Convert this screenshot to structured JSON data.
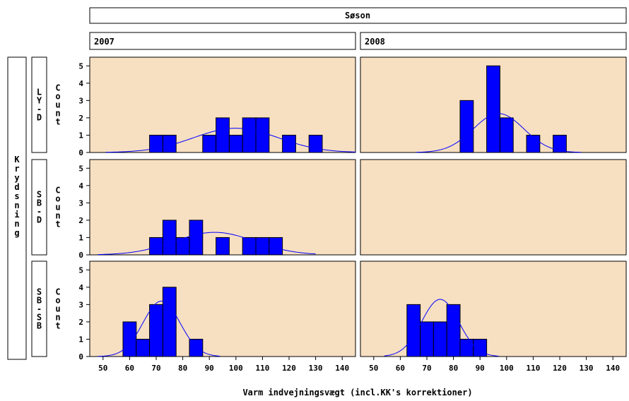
{
  "chart_data": {
    "type": "bar",
    "column_header": "Søson",
    "row_header": "Krydsning",
    "columns": [
      "2007",
      "2008"
    ],
    "rows": [
      "LY-D",
      "SB-D",
      "SB-SB"
    ],
    "ylabel": "Count",
    "xlabel": "Varm indvejningsvægt (incl.KK's korrektioner)",
    "xlim": [
      45,
      145
    ],
    "ylim": [
      0,
      5.5
    ],
    "xticks": [
      50,
      60,
      70,
      80,
      90,
      100,
      110,
      120,
      130,
      140
    ],
    "yticks": [
      0,
      1,
      2,
      3,
      4,
      5
    ],
    "bin_width": 5,
    "colors": {
      "panel_bg": "#f7dfc2",
      "bar": "#0000ff",
      "curve": "#0000ff"
    },
    "panels": [
      {
        "row": "LY-D",
        "column": "2007",
        "bars": [
          {
            "x": 70,
            "count": 1
          },
          {
            "x": 75,
            "count": 1
          },
          {
            "x": 90,
            "count": 1
          },
          {
            "x": 95,
            "count": 2
          },
          {
            "x": 100,
            "count": 1
          },
          {
            "x": 105,
            "count": 2
          },
          {
            "x": 110,
            "count": 2
          },
          {
            "x": 120,
            "count": 1
          },
          {
            "x": 130,
            "count": 1
          }
        ],
        "normal_curve": {
          "mean": 100,
          "sd": 16,
          "peak": 1.4,
          "xmin": 51,
          "xmax": 146
        }
      },
      {
        "row": "LY-D",
        "column": "2008",
        "bars": [
          {
            "x": 85,
            "count": 3
          },
          {
            "x": 95,
            "count": 5
          },
          {
            "x": 100,
            "count": 2
          },
          {
            "x": 110,
            "count": 1
          },
          {
            "x": 120,
            "count": 1
          }
        ],
        "normal_curve": {
          "mean": 97,
          "sd": 9.5,
          "peak": 2.25,
          "xmin": 66,
          "xmax": 128
        }
      },
      {
        "row": "SB-D",
        "column": "2007",
        "bars": [
          {
            "x": 70,
            "count": 1
          },
          {
            "x": 75,
            "count": 2
          },
          {
            "x": 80,
            "count": 1
          },
          {
            "x": 85,
            "count": 2
          },
          {
            "x": 95,
            "count": 1
          },
          {
            "x": 105,
            "count": 1
          },
          {
            "x": 110,
            "count": 1
          },
          {
            "x": 115,
            "count": 1
          }
        ],
        "normal_curve": {
          "mean": 92,
          "sd": 15,
          "peak": 1.3,
          "xmin": 48,
          "xmax": 130
        }
      },
      {
        "row": "SB-D",
        "column": "2008",
        "bars": [],
        "normal_curve": null
      },
      {
        "row": "SB-SB",
        "column": "2007",
        "bars": [
          {
            "x": 60,
            "count": 2
          },
          {
            "x": 65,
            "count": 1
          },
          {
            "x": 70,
            "count": 3
          },
          {
            "x": 75,
            "count": 4
          },
          {
            "x": 85,
            "count": 1
          }
        ],
        "normal_curve": {
          "mean": 72,
          "sd": 7,
          "peak": 3.2,
          "xmin": 48,
          "xmax": 94
        }
      },
      {
        "row": "SB-SB",
        "column": "2008",
        "bars": [
          {
            "x": 65,
            "count": 3
          },
          {
            "x": 70,
            "count": 2
          },
          {
            "x": 75,
            "count": 2
          },
          {
            "x": 80,
            "count": 3
          },
          {
            "x": 85,
            "count": 1
          },
          {
            "x": 90,
            "count": 1
          }
        ],
        "normal_curve": {
          "mean": 75,
          "sd": 7,
          "peak": 3.3,
          "xmin": 54,
          "xmax": 97
        }
      }
    ]
  }
}
